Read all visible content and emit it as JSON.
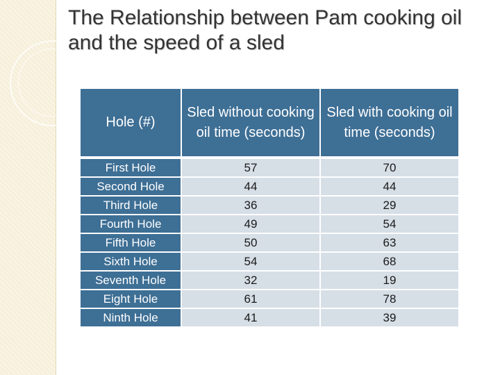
{
  "slide": {
    "title": "The Relationship between Pam cooking oil and the speed of a sled"
  },
  "table": {
    "headers": [
      "Hole (#)",
      "Sled without cooking oil time (seconds)",
      "Sled with cooking oil time (seconds)"
    ],
    "rows": [
      [
        "First Hole",
        "57",
        "70"
      ],
      [
        "Second Hole",
        "44",
        "44"
      ],
      [
        "Third Hole",
        "36",
        "29"
      ],
      [
        "Fourth Hole",
        "49",
        "54"
      ],
      [
        "Fifth Hole",
        "50",
        "63"
      ],
      [
        "Sixth Hole",
        "54",
        "68"
      ],
      [
        "Seventh Hole",
        "32",
        "19"
      ],
      [
        "Eight Hole",
        "61",
        "78"
      ],
      [
        "Ninth Hole",
        "41",
        "39"
      ]
    ]
  },
  "colors": {
    "header_bg": "#3e6f95",
    "cell_bg": "#d6dee6",
    "side_band": "#f6efd9"
  }
}
